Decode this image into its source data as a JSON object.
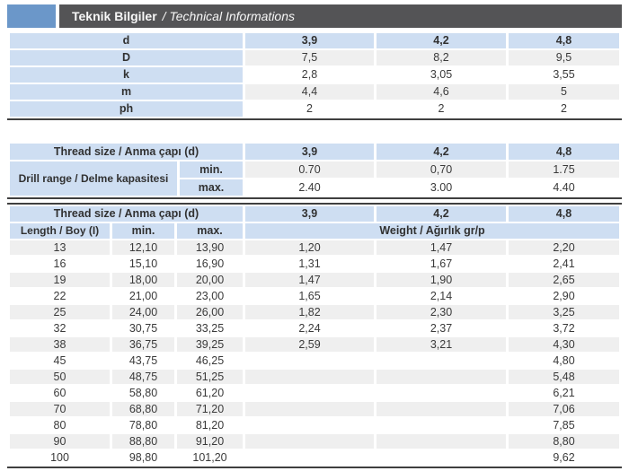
{
  "header": {
    "title_tr": "Teknik Bilgiler",
    "title_en": "/ Technical Informations"
  },
  "accent_color": "#6b97c9",
  "cell_blue": "#cedef2",
  "stripe_gray": "#efefef",
  "dimensions_table": {
    "rows": [
      {
        "label": "d",
        "values": [
          "3,9",
          "4,2",
          "4,8"
        ],
        "is_header": true
      },
      {
        "label": "D",
        "values": [
          "7,5",
          "8,2",
          "9,5"
        ]
      },
      {
        "label": "k",
        "values": [
          "2,8",
          "3,05",
          "3,55"
        ]
      },
      {
        "label": "m",
        "values": [
          "4,4",
          "4,6",
          "5"
        ]
      },
      {
        "label": "ph",
        "values": [
          "2",
          "2",
          "2"
        ]
      }
    ]
  },
  "drill_table": {
    "header_label": "Thread size / Anma çapı (d)",
    "columns": [
      "3,9",
      "4,2",
      "4,8"
    ],
    "row_label": "Drill range / Delme kapasitesi",
    "min_label": "min.",
    "max_label": "max.",
    "min_values": [
      "0.70",
      "0,70",
      "1.75"
    ],
    "max_values": [
      "2.40",
      "3.00",
      "4.40"
    ]
  },
  "length_table": {
    "header_label": "Thread size / Anma çapı (d)",
    "columns": [
      "3,9",
      "4,2",
      "4,8"
    ],
    "length_label": "Length / Boy (I)",
    "min_label": "min.",
    "max_label": "max.",
    "weight_label": "Weight / Ağırlık gr/p",
    "rows": [
      [
        "13",
        "12,10",
        "13,90",
        "1,20",
        "1,47",
        "2,20"
      ],
      [
        "16",
        "15,10",
        "16,90",
        "1,31",
        "1,67",
        "2,41"
      ],
      [
        "19",
        "18,00",
        "20,00",
        "1,47",
        "1,90",
        "2,65"
      ],
      [
        "22",
        "21,00",
        "23,00",
        "1,65",
        "2,14",
        "2,90"
      ],
      [
        "25",
        "24,00",
        "26,00",
        "1,82",
        "2,30",
        "3,25"
      ],
      [
        "32",
        "30,75",
        "33,25",
        "2,24",
        "2,37",
        "3,72"
      ],
      [
        "38",
        "36,75",
        "39,25",
        "2,59",
        "3,21",
        "4,30"
      ],
      [
        "45",
        "43,75",
        "46,25",
        "",
        "",
        "4,80"
      ],
      [
        "50",
        "48,75",
        "51,25",
        "",
        "",
        "5,48"
      ],
      [
        "60",
        "58,80",
        "61,20",
        "",
        "",
        "6,21"
      ],
      [
        "70",
        "68,80",
        "71,20",
        "",
        "",
        "7,06"
      ],
      [
        "80",
        "78,80",
        "81,20",
        "",
        "",
        "7,85"
      ],
      [
        "90",
        "88,80",
        "91,20",
        "",
        "",
        "8,80"
      ],
      [
        "100",
        "98,80",
        "101,20",
        "",
        "",
        "9,62"
      ]
    ]
  }
}
